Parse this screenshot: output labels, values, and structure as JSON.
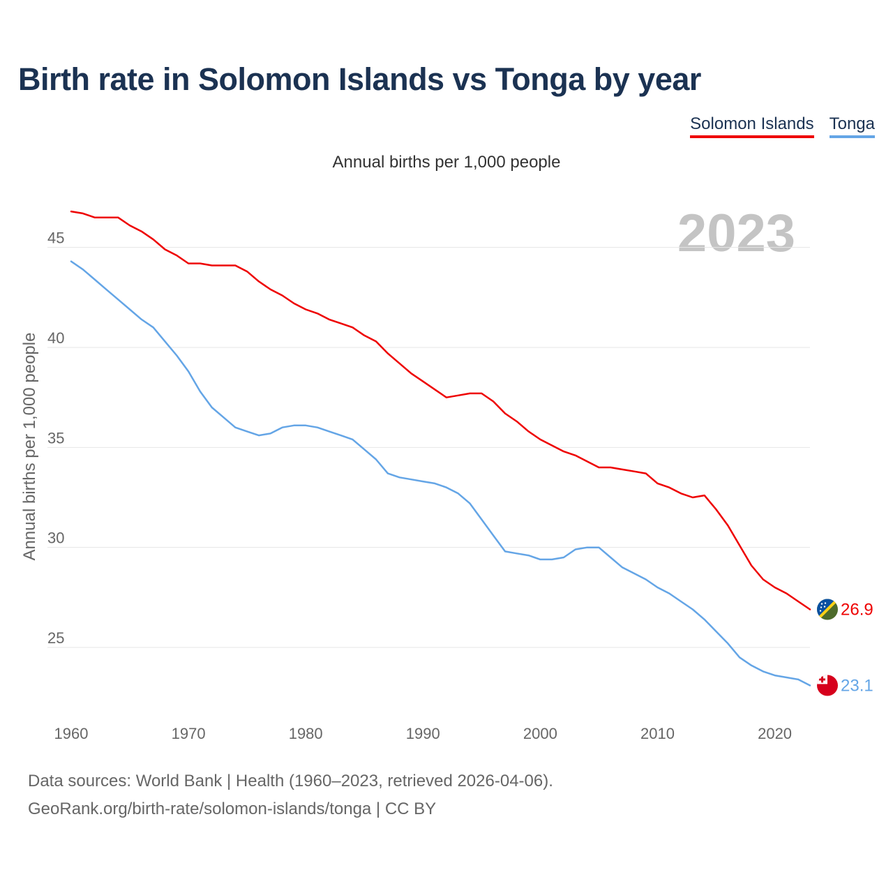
{
  "title": "Birth rate in Solomon Islands vs Tonga by year",
  "legend": {
    "solomon": "Solomon Islands",
    "tonga": "Tonga"
  },
  "footer": {
    "source": "Data sources: World Bank | Health (1960–2023, retrieved 2026-04-06).",
    "credit": "GeoRank.org/birth-rate/solomon-islands/tonga | CC BY"
  },
  "colors": {
    "solomon": "#ee0000",
    "tonga": "#64a5e6",
    "grid": "#e6e6e6",
    "axis_text": "#666666",
    "year_watermark": "#c4c4c4"
  },
  "chart_data": {
    "type": "line",
    "title": "Birth rate in Solomon Islands vs Tonga by year",
    "subtitle": "Annual births per 1,000 people",
    "ylabel": "Annual births per 1,000 people",
    "xlabel": "",
    "xlim": [
      1960,
      2023
    ],
    "ylim": [
      22,
      47.5
    ],
    "x_ticks": [
      1960,
      1970,
      1980,
      1990,
      2000,
      2010,
      2020
    ],
    "y_ticks": [
      25,
      30,
      35,
      40,
      45
    ],
    "grid": true,
    "year_label": "2023",
    "x": [
      1960,
      1961,
      1962,
      1963,
      1964,
      1965,
      1966,
      1967,
      1968,
      1969,
      1970,
      1971,
      1972,
      1973,
      1974,
      1975,
      1976,
      1977,
      1978,
      1979,
      1980,
      1981,
      1982,
      1983,
      1984,
      1985,
      1986,
      1987,
      1988,
      1989,
      1990,
      1991,
      1992,
      1993,
      1994,
      1995,
      1996,
      1997,
      1998,
      1999,
      2000,
      2001,
      2002,
      2003,
      2004,
      2005,
      2006,
      2007,
      2008,
      2009,
      2010,
      2011,
      2012,
      2013,
      2014,
      2015,
      2016,
      2017,
      2018,
      2019,
      2020,
      2021,
      2022,
      2023
    ],
    "series": [
      {
        "name": "Solomon Islands",
        "color": "#ee0000",
        "end_label": "26.9",
        "values": [
          46.8,
          46.7,
          46.5,
          46.5,
          46.5,
          46.1,
          45.8,
          45.4,
          44.9,
          44.6,
          44.2,
          44.2,
          44.1,
          44.1,
          44.1,
          43.8,
          43.3,
          42.9,
          42.6,
          42.2,
          41.9,
          41.7,
          41.4,
          41.2,
          41.0,
          40.6,
          40.3,
          39.7,
          39.2,
          38.7,
          38.3,
          37.9,
          37.5,
          37.6,
          37.7,
          37.7,
          37.3,
          36.7,
          36.3,
          35.8,
          35.4,
          35.1,
          34.8,
          34.6,
          34.3,
          34.0,
          34.0,
          33.9,
          33.8,
          33.7,
          33.2,
          33.0,
          32.7,
          32.5,
          32.6,
          31.9,
          31.1,
          30.1,
          29.1,
          28.4,
          28.0,
          27.7,
          27.3,
          26.9
        ]
      },
      {
        "name": "Tonga",
        "color": "#64a5e6",
        "end_label": "23.1",
        "values": [
          44.3,
          43.9,
          43.4,
          42.9,
          42.4,
          41.9,
          41.4,
          41.0,
          40.3,
          39.6,
          38.8,
          37.8,
          37.0,
          36.5,
          36.0,
          35.8,
          35.6,
          35.7,
          36.0,
          36.1,
          36.1,
          36.0,
          35.8,
          35.6,
          35.4,
          34.9,
          34.4,
          33.7,
          33.5,
          33.4,
          33.3,
          33.2,
          33.0,
          32.7,
          32.2,
          31.4,
          30.6,
          29.8,
          29.7,
          29.6,
          29.4,
          29.4,
          29.5,
          29.9,
          30.0,
          30.0,
          29.5,
          29.0,
          28.7,
          28.4,
          28.0,
          27.7,
          27.3,
          26.9,
          26.4,
          25.8,
          25.2,
          24.5,
          24.1,
          23.8,
          23.6,
          23.5,
          23.4,
          23.1
        ]
      }
    ]
  }
}
